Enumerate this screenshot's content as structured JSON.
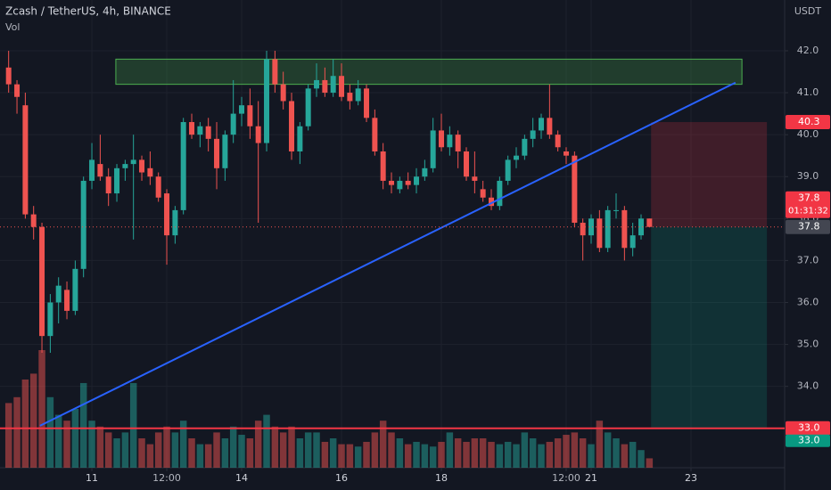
{
  "chart_data": {
    "type": "candlestick",
    "title": "Zcash / TetherUS, 4h, BINANCE",
    "y_axis_label": "USDT",
    "x": [
      9.333,
      9.5,
      9.667,
      9.833,
      10,
      10.167,
      10.333,
      10.5,
      10.667,
      10.833,
      11,
      11.167,
      11.333,
      11.5,
      11.667,
      11.833,
      12,
      12.167,
      12.333,
      12.5,
      12.667,
      12.833,
      13,
      13.167,
      13.333,
      13.5,
      13.667,
      13.833,
      14,
      14.167,
      14.333,
      14.5,
      14.667,
      14.833,
      15,
      15.167,
      15.333,
      15.5,
      15.667,
      15.833,
      16,
      16.167,
      16.333,
      16.5,
      16.667,
      16.833,
      17,
      17.167,
      17.333,
      17.5,
      17.667,
      17.833,
      18,
      18.167,
      18.333,
      18.5,
      18.667,
      18.833,
      19,
      19.167,
      19.333,
      19.5,
      19.667,
      19.833,
      20,
      20.167,
      20.333,
      20.5,
      20.667,
      20.833,
      21,
      21.167,
      21.333,
      21.5,
      21.667,
      21.833,
      22,
      22.167
    ],
    "open": [
      41.6,
      41.2,
      40.7,
      38.1,
      37.8,
      35.2,
      36.0,
      36.3,
      35.8,
      36.8,
      38.9,
      39.3,
      39.0,
      38.6,
      39.2,
      39.3,
      39.4,
      39.2,
      39.0,
      38.6,
      37.6,
      38.2,
      40.3,
      40.0,
      40.2,
      39.9,
      39.2,
      40.0,
      40.5,
      40.7,
      40.2,
      39.8,
      41.8,
      41.2,
      40.8,
      39.6,
      40.2,
      41.1,
      41.3,
      41.0,
      41.4,
      41.0,
      40.8,
      41.1,
      40.4,
      39.6,
      38.9,
      38.7,
      38.9,
      38.8,
      39.0,
      39.2,
      40.1,
      39.7,
      40.0,
      39.6,
      39.0,
      38.7,
      38.5,
      38.3,
      38.9,
      39.4,
      39.5,
      39.9,
      40.1,
      40.4,
      40.0,
      39.6,
      39.5,
      37.9,
      37.6,
      38.0,
      37.3,
      38.2,
      38.2,
      37.3,
      37.6,
      38.0
    ],
    "high": [
      42.0,
      41.3,
      41.0,
      38.3,
      37.9,
      36.2,
      36.6,
      36.5,
      37.0,
      39.0,
      39.8,
      40.0,
      39.2,
      39.3,
      39.4,
      40.0,
      39.5,
      39.6,
      39.1,
      38.7,
      38.3,
      40.4,
      40.5,
      40.3,
      40.4,
      40.3,
      40.1,
      41.3,
      40.9,
      41.1,
      40.8,
      42.0,
      42.0,
      41.5,
      41.0,
      40.3,
      41.2,
      41.7,
      41.6,
      41.8,
      41.7,
      41.2,
      41.3,
      41.2,
      40.6,
      39.8,
      39.1,
      39.0,
      39.1,
      39.2,
      39.4,
      40.4,
      40.5,
      40.2,
      40.1,
      39.7,
      39.6,
      38.9,
      38.7,
      39.0,
      39.5,
      39.7,
      40.0,
      40.4,
      40.5,
      41.2,
      40.1,
      39.7,
      39.6,
      38.0,
      38.1,
      38.2,
      38.3,
      38.6,
      38.3,
      37.9,
      38.1,
      38.0
    ],
    "low": [
      41.0,
      40.5,
      38.0,
      37.5,
      34.8,
      34.8,
      35.5,
      35.6,
      35.7,
      36.6,
      38.7,
      38.9,
      38.3,
      38.4,
      38.9,
      37.5,
      38.9,
      38.8,
      38.4,
      36.9,
      37.4,
      38.1,
      39.9,
      39.7,
      39.6,
      38.7,
      38.9,
      39.8,
      40.2,
      39.9,
      37.9,
      39.6,
      41.0,
      40.6,
      39.4,
      39.3,
      40.1,
      40.9,
      40.9,
      40.9,
      40.8,
      40.6,
      40.7,
      40.3,
      39.5,
      38.7,
      38.6,
      38.6,
      38.7,
      38.6,
      38.9,
      39.1,
      39.6,
      39.5,
      39.2,
      38.9,
      38.6,
      38.4,
      38.2,
      38.2,
      38.8,
      39.2,
      39.4,
      39.7,
      39.9,
      39.9,
      39.6,
      39.3,
      37.8,
      37.0,
      37.4,
      37.2,
      37.2,
      38.0,
      37.0,
      37.1,
      37.5,
      37.8
    ],
    "close": [
      41.2,
      40.9,
      38.1,
      37.8,
      35.2,
      36.0,
      36.4,
      35.8,
      36.8,
      38.9,
      39.4,
      39.0,
      38.6,
      39.2,
      39.3,
      39.4,
      39.1,
      39.0,
      38.5,
      37.6,
      38.2,
      40.3,
      40.0,
      40.2,
      39.9,
      39.2,
      40.0,
      40.5,
      40.7,
      40.2,
      39.8,
      41.8,
      41.2,
      40.8,
      39.6,
      40.2,
      41.1,
      41.3,
      41.0,
      41.4,
      40.9,
      40.8,
      41.1,
      40.4,
      39.6,
      38.9,
      38.8,
      38.9,
      38.8,
      39.0,
      39.2,
      40.1,
      39.7,
      40.0,
      39.6,
      39.0,
      38.9,
      38.5,
      38.3,
      38.9,
      39.4,
      39.5,
      39.9,
      40.1,
      40.4,
      40.0,
      39.7,
      39.5,
      37.9,
      37.6,
      38.0,
      37.3,
      38.2,
      38.2,
      37.3,
      37.6,
      38.0,
      37.8
    ],
    "up_color": "#26a69a",
    "down_color": "#ef5350",
    "volume": {
      "name": "Vol",
      "values": [
        55,
        60,
        75,
        80,
        100,
        60,
        45,
        40,
        50,
        72,
        40,
        35,
        30,
        25,
        30,
        72,
        25,
        20,
        30,
        35,
        30,
        40,
        25,
        20,
        20,
        30,
        25,
        35,
        28,
        25,
        40,
        45,
        35,
        30,
        35,
        25,
        30,
        30,
        22,
        25,
        20,
        20,
        18,
        22,
        30,
        40,
        30,
        25,
        20,
        22,
        20,
        18,
        22,
        30,
        25,
        22,
        25,
        25,
        22,
        20,
        22,
        20,
        30,
        25,
        20,
        22,
        25,
        28,
        30,
        25,
        20,
        40,
        30,
        25,
        20,
        22,
        15,
        8
      ]
    },
    "xlim": [
      9.16,
      24.875
    ],
    "xticks": [
      11,
      {
        "value": 12.5,
        "label": "12:00"
      },
      14,
      16,
      18,
      {
        "value": 20.5,
        "label": "12:00"
      },
      21,
      23
    ],
    "ylim": [
      32.06,
      43.21
    ],
    "yticks": [
      {
        "value": 33,
        "label": "33.0"
      },
      {
        "value": 34,
        "label": "34.0"
      },
      {
        "value": 35,
        "label": "35.0"
      },
      {
        "value": 36,
        "label": "36.0"
      },
      {
        "value": 37,
        "label": "37.0"
      },
      {
        "value": 38,
        "label": "38.0"
      },
      {
        "value": 39,
        "label": "39.0"
      },
      {
        "value": 40,
        "label": "40.0"
      },
      {
        "value": 41,
        "label": "41.0"
      },
      {
        "value": 42,
        "label": "42.0"
      }
    ],
    "grid": true,
    "resistance_zone": {
      "x": [
        11.48,
        24.02
      ],
      "y": [
        41.2,
        41.8
      ]
    },
    "trendline": {
      "x": [
        9.96,
        23.89
      ],
      "y": [
        33.06,
        41.24
      ]
    },
    "support_line": {
      "value": 33,
      "label": "33.0"
    },
    "position": {
      "x": [
        22.2,
        24.52
      ],
      "entry": 37.8,
      "stop": 40.3,
      "target": {
        "value": 33,
        "label": "33.0"
      }
    },
    "last_price": 37.8,
    "countdown": "01:31:32"
  }
}
